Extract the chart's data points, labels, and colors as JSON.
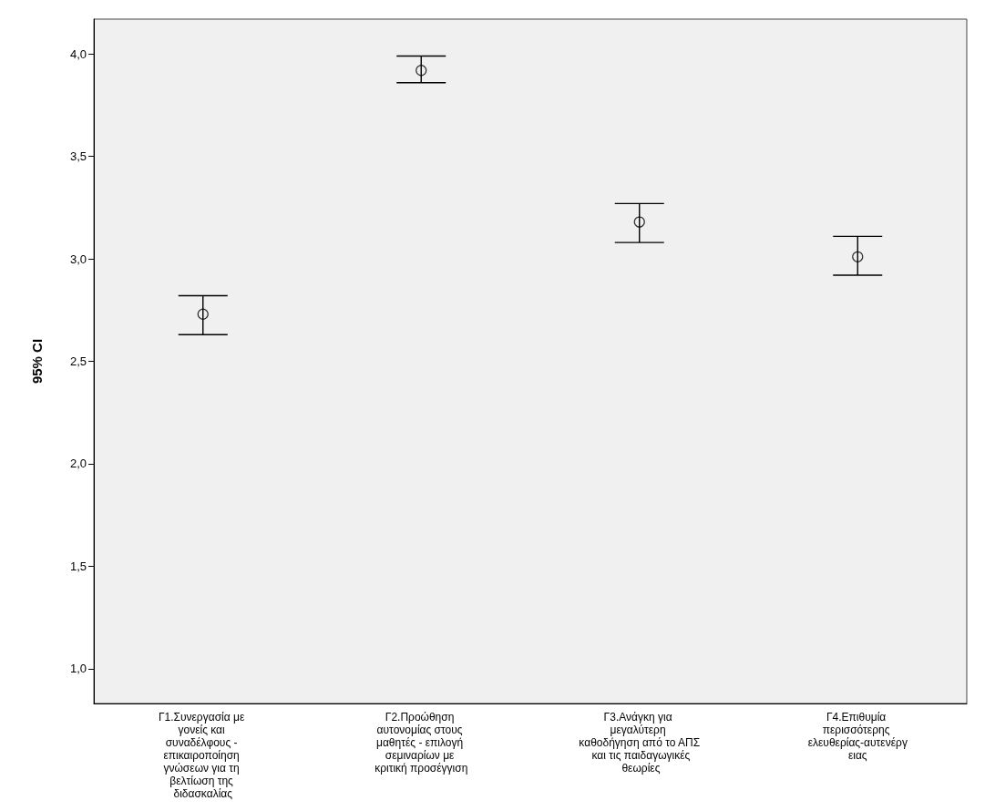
{
  "chart_data": {
    "type": "scatter",
    "ylabel": "95% CI",
    "categories": [
      "Γ1.Συνεργασία με γονείς και συναδέλφους - επικαιροποίηση γνώσεων για τη βελτίωση της διδασκαλίας",
      "Γ2.Προώθηση αυτονομίας στους μαθητές - επιλογή σεμιναρίων με κριτική προσέγγιση",
      "Γ3.Ανάγκη για μεγαλύτερη καθοδήγηση από το ΑΠΣ και τις παιδαγωγικές θεωρίες",
      "Γ4.Επιθυμία περισσότερης ελευθερίας-αυτενέργειας"
    ],
    "values": [
      2.73,
      3.92,
      3.18,
      3.01
    ],
    "errors": [
      [
        2.63,
        2.82
      ],
      [
        3.86,
        3.99
      ],
      [
        3.08,
        3.27
      ],
      [
        2.92,
        3.11
      ]
    ],
    "color": "#000000",
    "marker": "circle",
    "grid": false,
    "ylim": [
      0.83,
      4.17
    ],
    "yticks": [
      {
        "value": 1,
        "label": "1,0"
      },
      {
        "value": 1.5,
        "label": "1,5"
      },
      {
        "value": 2,
        "label": "2,0"
      },
      {
        "value": 2.5,
        "label": "2,5"
      },
      {
        "value": 3,
        "label": "3,0"
      },
      {
        "value": 3.5,
        "label": "3,5"
      },
      {
        "value": 4,
        "label": "4,0"
      }
    ]
  }
}
